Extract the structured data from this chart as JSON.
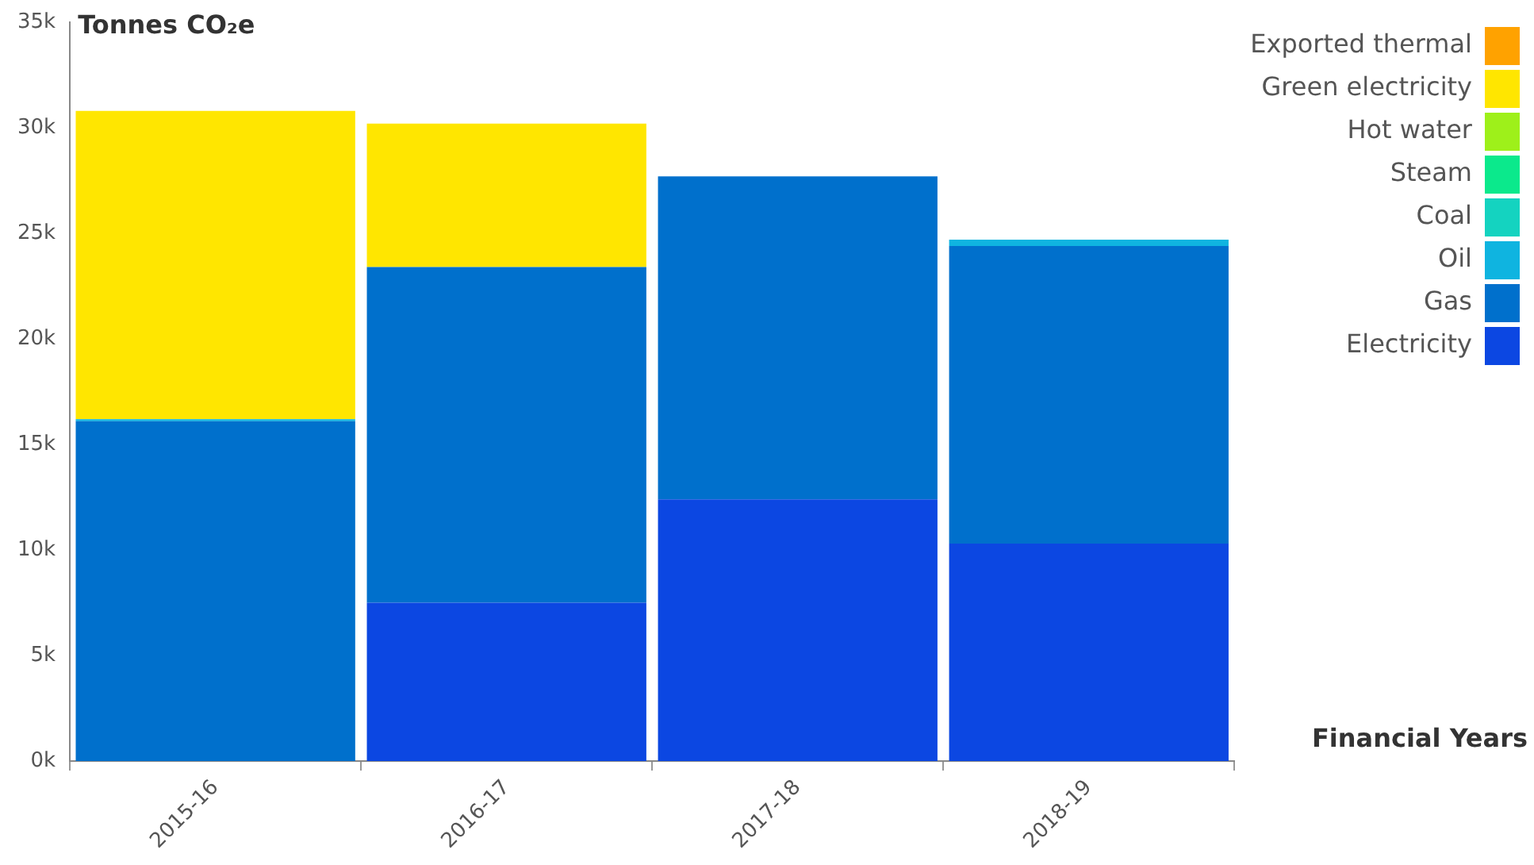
{
  "chart_data": {
    "type": "bar",
    "stacked": true,
    "ylabel": "Tonnes CO₂e",
    "xlabel": "Financial Years",
    "categories": [
      "2015-16",
      "2016-17",
      "2017-18",
      "2018-19"
    ],
    "series": [
      {
        "name": "Electricity",
        "color": "#0c47e2",
        "values": [
          0,
          7500,
          12400,
          10300
        ]
      },
      {
        "name": "Gas",
        "color": "#0070cc",
        "values": [
          16100,
          15900,
          15300,
          14100
        ]
      },
      {
        "name": "Oil",
        "color": "#0fb4e0",
        "values": [
          100,
          0,
          0,
          300
        ]
      },
      {
        "name": "Coal",
        "color": "#14d3c0",
        "values": [
          0,
          0,
          0,
          0
        ]
      },
      {
        "name": "Steam",
        "color": "#0be98c",
        "values": [
          0,
          0,
          0,
          0
        ]
      },
      {
        "name": "Hot water",
        "color": "#9ef01a",
        "values": [
          0,
          0,
          0,
          0
        ]
      },
      {
        "name": "Green electricity",
        "color": "#ffe600",
        "values": [
          14600,
          6800,
          0,
          0
        ]
      },
      {
        "name": "Exported thermal",
        "color": "#ffa200",
        "values": [
          0,
          0,
          0,
          0
        ]
      }
    ],
    "ylim": [
      0,
      35000
    ],
    "yticks": [
      {
        "value": 0,
        "label": "0k"
      },
      {
        "value": 5000,
        "label": "5k"
      },
      {
        "value": 10000,
        "label": "10k"
      },
      {
        "value": 15000,
        "label": "15k"
      },
      {
        "value": 20000,
        "label": "20k"
      },
      {
        "value": 25000,
        "label": "25k"
      },
      {
        "value": 30000,
        "label": "30k"
      },
      {
        "value": 35000,
        "label": "35k"
      }
    ],
    "grid": false,
    "legend": "top right"
  }
}
